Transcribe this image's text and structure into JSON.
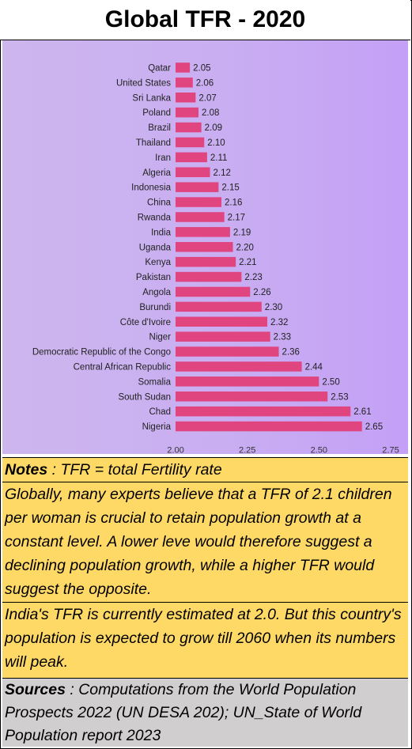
{
  "title": "Global TFR  - 2020",
  "notes": {
    "label": "Notes",
    "definition": " : TFR = total Fertility rate",
    "paragraph1": "Globally, many experts believe that a TFR of 2.1 children per woman is crucial to retain population growth at a constant level.  A lower leve would therefore suggest a declining population growth, while a higher TFR would suggest the opposite.",
    "paragraph2": "India's TFR is currently estimated at 2.0.  But this country's population is expected to grow till 2060 when its numbers will peak."
  },
  "sources": {
    "label": "Sources",
    "text": " : Computations from the World Population Prospects 2022 (UN DESA 202); UN_State of World Population report 2023"
  },
  "colors": {
    "bar": "#e0457f",
    "chart_bg": "#c9aef2",
    "notes_bg": "#ffd966",
    "sources_bg": "#d0cece"
  },
  "chart_data": {
    "type": "bar",
    "orientation": "horizontal",
    "categories": [
      "Qatar",
      "United States",
      "Sri Lanka",
      "Poland",
      "Brazil",
      "Thailand",
      "Iran",
      "Algeria",
      "Indonesia",
      "China",
      "Rwanda",
      "India",
      "Uganda",
      "Kenya",
      "Pakistan",
      "Angola",
      "Burundi",
      "Côte d'Ivoire",
      "Niger",
      "Democratic Republic of the Congo",
      "Central African Republic",
      "Somalia",
      "South Sudan",
      "Chad",
      "Nigeria"
    ],
    "values": [
      2.05,
      2.06,
      2.07,
      2.08,
      2.09,
      2.1,
      2.11,
      2.12,
      2.15,
      2.16,
      2.17,
      2.19,
      2.2,
      2.21,
      2.23,
      2.26,
      2.3,
      2.32,
      2.33,
      2.36,
      2.44,
      2.5,
      2.53,
      2.61,
      2.65
    ],
    "value_labels": [
      "2.05",
      "2.06",
      "2.07",
      "2.08",
      "2.09",
      "2.10",
      "2.11",
      "2.12",
      "2.15",
      "2.16",
      "2.17",
      "2.19",
      "2.20",
      "2.21",
      "2.23",
      "2.26",
      "2.30",
      "2.32",
      "2.33",
      "2.36",
      "2.44",
      "2.50",
      "2.53",
      "2.61",
      "2.65"
    ],
    "xticks": [
      "2.00",
      "2.25",
      "2.50",
      "2.75"
    ],
    "xlim": [
      2.0,
      2.75
    ],
    "grid": false
  }
}
